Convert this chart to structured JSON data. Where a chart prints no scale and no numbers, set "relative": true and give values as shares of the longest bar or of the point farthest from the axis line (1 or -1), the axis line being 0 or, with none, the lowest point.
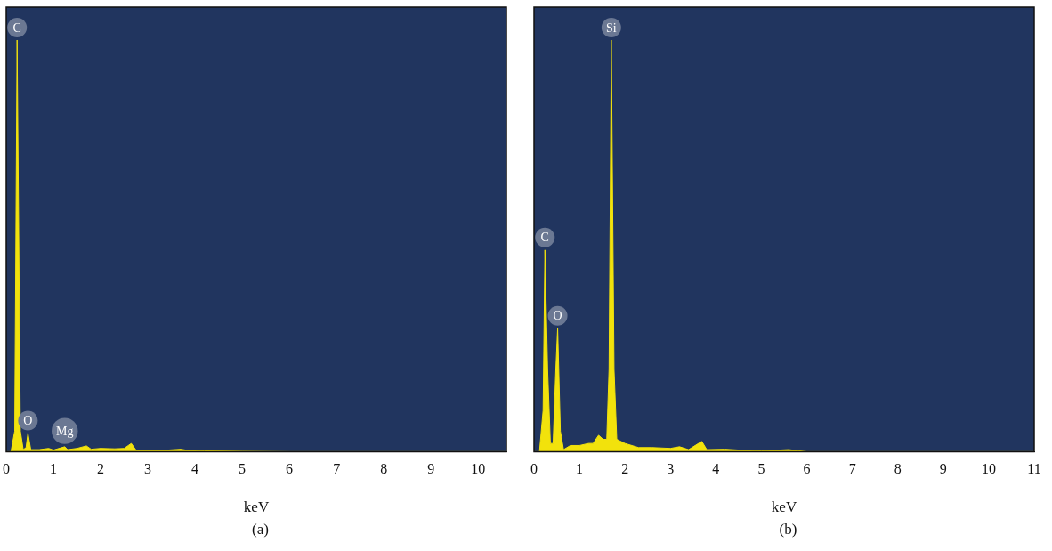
{
  "chart_data": [
    {
      "type": "area",
      "xlabel": "keV",
      "relative": true,
      "xlim": [
        0,
        10.6
      ],
      "xticks": [
        0,
        1,
        2,
        3,
        4,
        5,
        6,
        7,
        8,
        9,
        10
      ],
      "grid": false,
      "legend": false,
      "tick_labels": "x",
      "color": "#f2e20c",
      "x": [
        0,
        0.1,
        0.18,
        0.23,
        0.3,
        0.36,
        0.42,
        0.46,
        0.52,
        0.7,
        0.9,
        1.0,
        1.24,
        1.3,
        1.5,
        1.7,
        1.8,
        2.0,
        2.3,
        2.5,
        2.65,
        2.75,
        3.0,
        3.3,
        3.7,
        3.8,
        4.2,
        5,
        6,
        10.6
      ],
      "values": [
        0,
        0,
        0.05,
        1,
        0.05,
        0.005,
        0.01,
        0.045,
        0.005,
        0.005,
        0.008,
        0.004,
        0.012,
        0.005,
        0.008,
        0.014,
        0.006,
        0.008,
        0.007,
        0.008,
        0.02,
        0.004,
        0.004,
        0.003,
        0.006,
        0.004,
        0.002,
        0.001,
        0,
        0
      ],
      "annotations": [
        {
          "text": "C",
          "x": 0.23,
          "y": 1
        },
        {
          "text": "O",
          "x": 0.46,
          "y": 0.045
        },
        {
          "text": "Mg",
          "x": 1.24,
          "y": 0.012
        },
        "(a)"
      ]
    },
    {
      "type": "area",
      "xlabel": "keV",
      "relative": true,
      "xlim": [
        0,
        11
      ],
      "xticks": [
        0,
        1,
        2,
        3,
        4,
        5,
        6,
        7,
        8,
        9,
        10,
        11
      ],
      "grid": false,
      "legend": false,
      "tick_labels": "x",
      "color": "#f2e20c",
      "x": [
        0,
        0.12,
        0.2,
        0.24,
        0.3,
        0.36,
        0.42,
        0.48,
        0.52,
        0.58,
        0.65,
        0.8,
        1.0,
        1.2,
        1.3,
        1.42,
        1.52,
        1.6,
        1.65,
        1.7,
        1.76,
        1.82,
        2.0,
        2.3,
        2.6,
        3.0,
        3.2,
        3.4,
        3.69,
        3.8,
        4.2,
        4.5,
        5.0,
        5.6,
        6,
        11
      ],
      "values": [
        0,
        0,
        0.1,
        0.49,
        0.2,
        0.02,
        0.02,
        0.2,
        0.3,
        0.05,
        0.005,
        0.015,
        0.015,
        0.02,
        0.02,
        0.04,
        0.03,
        0.03,
        0.2,
        1,
        0.2,
        0.03,
        0.02,
        0.01,
        0.01,
        0.008,
        0.012,
        0.005,
        0.025,
        0.005,
        0.006,
        0.004,
        0.002,
        0.005,
        0,
        0
      ],
      "annotations": [
        {
          "text": "C",
          "x": 0.24,
          "y": 0.49
        },
        {
          "text": "O",
          "x": 0.52,
          "y": 0.3
        },
        {
          "text": "Si",
          "x": 1.7,
          "y": 1
        },
        "(b)"
      ]
    }
  ]
}
